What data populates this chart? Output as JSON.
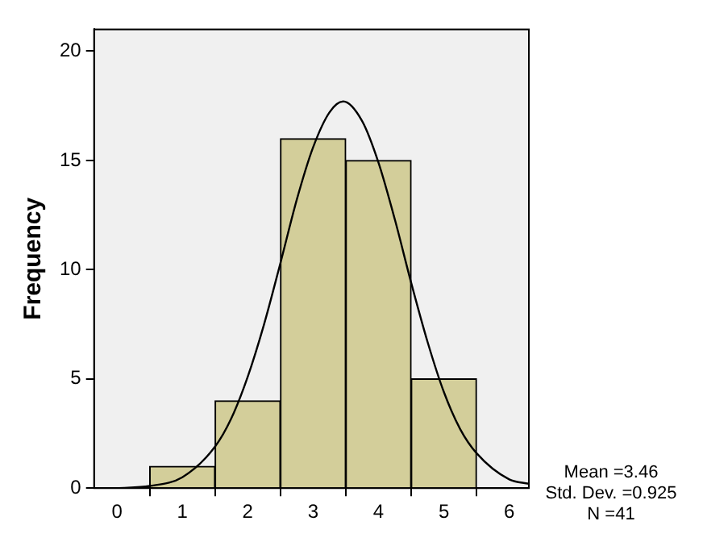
{
  "chart_data": {
    "type": "histogram",
    "ylabel": "Frequency",
    "bins": [
      0.5,
      1.5,
      2.5,
      3.5,
      4.5,
      5.5
    ],
    "values": [
      1,
      4,
      16,
      15,
      5
    ],
    "color": "#d3ce9a",
    "series": [
      {
        "type": "line",
        "color": "#000000",
        "x": [
          0,
          0.5,
          1,
          1.5,
          1.75,
          2,
          2.25,
          2.5,
          2.75,
          3,
          3.25,
          3.46,
          3.75,
          4,
          4.25,
          4.5,
          4.75,
          5,
          5.25,
          5.5,
          6,
          6.3
        ],
        "values": [
          0,
          0.1,
          0.5,
          1.9,
          3.2,
          5.1,
          7.5,
          10.3,
          13.2,
          15.6,
          17.2,
          17.7,
          16.8,
          14.9,
          12.3,
          9.4,
          6.7,
          4.4,
          2.7,
          1.6,
          0.4,
          0.2
        ]
      }
    ],
    "xlim": [
      -0.35,
      6.3
    ],
    "xticks": [
      0,
      1,
      2,
      3,
      4,
      5,
      6
    ],
    "ylim": [
      0,
      21
    ],
    "yticks": [
      0,
      5,
      10,
      15,
      20
    ],
    "grid": false,
    "legend": false,
    "marker": "none",
    "annotations": [
      "Mean =3.46",
      "Std. Dev. =0.925",
      "N =41"
    ]
  }
}
